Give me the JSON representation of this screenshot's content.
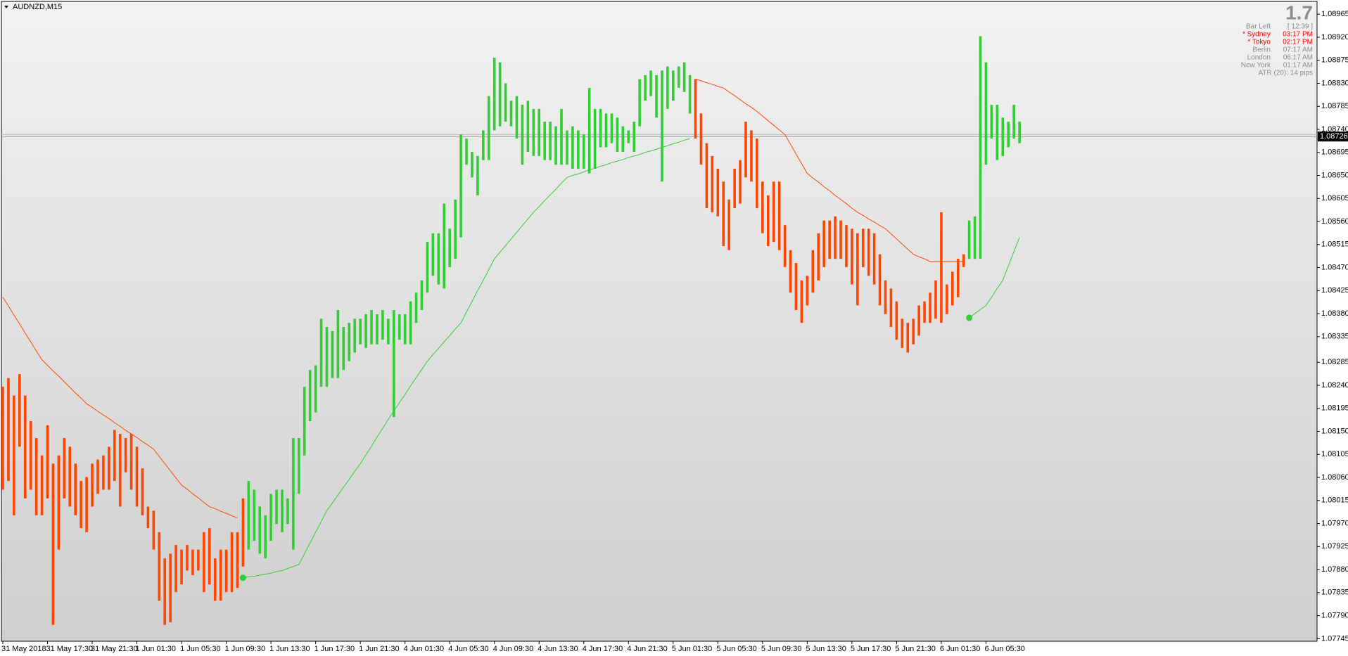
{
  "chart_data": {
    "type": "range_bar",
    "title": "AUDNZD,M15",
    "categories": [
      "31 May 2018",
      null,
      null,
      null,
      null,
      null,
      null,
      null,
      "31 May 17:30",
      null,
      null,
      null,
      null,
      null,
      null,
      null,
      "31 May 21:30",
      null,
      null,
      null,
      null,
      null,
      null,
      null,
      "1 Jun 01:30",
      null,
      null,
      null,
      null,
      null,
      null,
      null,
      "1 Jun 05:30",
      null,
      null,
      null,
      null,
      null,
      null,
      null,
      "1 Jun 09:30",
      null,
      null,
      null,
      null,
      null,
      null,
      null,
      "1 Jun 13:30",
      null,
      null,
      null,
      null,
      null,
      null,
      null,
      "1 Jun 17:30",
      null,
      null,
      null,
      null,
      null,
      null,
      null,
      "1 Jun 21:30",
      null,
      null,
      null,
      null,
      null,
      null,
      null,
      "4 Jun 01:30",
      null,
      null,
      null,
      null,
      null,
      null,
      null,
      "4 Jun 05:30",
      null,
      null,
      null,
      null,
      null,
      null,
      null,
      "4 Jun 09:30",
      null,
      null,
      null,
      null,
      null,
      null,
      null,
      "4 Jun 13:30",
      null,
      null,
      null,
      null,
      null,
      null,
      null,
      "4 Jun 17:30",
      null,
      null,
      null,
      null,
      null,
      null,
      null,
      "4 Jun 21:30",
      null,
      null,
      null,
      null,
      null,
      null,
      null,
      "5 Jun 01:30",
      null,
      null,
      null,
      null,
      null,
      null,
      null,
      "5 Jun 05:30",
      null,
      null,
      null,
      null,
      null,
      null,
      null,
      "5 Jun 09:30",
      null,
      null,
      null,
      null,
      null,
      null,
      null,
      "5 Jun 13:30",
      null,
      null,
      null,
      null,
      null,
      null,
      null,
      "5 Jun 17:30",
      null,
      null,
      null,
      null,
      null,
      null,
      null,
      "5 Jun 21:30",
      null,
      null,
      null,
      null,
      null,
      null,
      null,
      "6 Jun 01:30",
      null,
      null,
      null,
      null,
      null,
      null,
      null,
      "6 Jun 05:30",
      null,
      null,
      null,
      null,
      null,
      null
    ],
    "high": [
      1.08237,
      1.08254,
      1.0822,
      1.08262,
      1.0822,
      1.0817,
      1.08137,
      1.08103,
      1.08162,
      1.08087,
      1.08103,
      1.08137,
      1.0812,
      1.08087,
      1.08053,
      1.08061,
      1.08087,
      1.08095,
      1.08103,
      1.0812,
      1.08153,
      1.08145,
      1.08137,
      1.08145,
      1.0812,
      1.08078,
      1.08003,
      1.07995,
      1.07953,
      1.07902,
      1.07911,
      1.07928,
      1.07919,
      1.07928,
      1.07919,
      1.07919,
      1.07953,
      1.07961,
      1.07902,
      1.07919,
      1.07919,
      1.07953,
      1.07953,
      1.08019,
      1.08053,
      1.08036,
      1.08003,
      1.07986,
      1.08028,
      1.08036,
      1.08036,
      1.08019,
      1.08137,
      1.08137,
      1.08237,
      1.0827,
      1.08279,
      1.0837,
      1.08354,
      1.08346,
      1.08387,
      1.08354,
      1.08362,
      1.0837,
      1.0837,
      1.08379,
      1.08387,
      1.08379,
      1.08387,
      1.0837,
      1.08387,
      1.08379,
      1.08379,
      1.08404,
      1.08421,
      1.08445,
      1.0852,
      1.08537,
      1.08537,
      1.08595,
      1.08546,
      1.08603,
      1.0873,
      1.08722,
      1.08696,
      1.08688,
      1.08738,
      1.08805,
      1.0888,
      1.08871,
      1.0883,
      1.08796,
      1.08805,
      1.08788,
      1.08796,
      1.0878,
      1.0878,
      1.08755,
      1.08755,
      1.08746,
      1.0878,
      1.08738,
      1.08746,
      1.08738,
      1.0873,
      1.08821,
      1.0878,
      1.0878,
      1.08771,
      1.08771,
      1.08763,
      1.08746,
      1.08738,
      1.08755,
      1.08838,
      1.08846,
      1.08855,
      1.08846,
      1.08855,
      1.08863,
      1.08855,
      1.08863,
      1.08871,
      1.08846,
      1.08838,
      1.08771,
      1.08713,
      1.08688,
      1.08663,
      1.08638,
      1.08603,
      1.08663,
      1.0868,
      1.08755,
      1.08738,
      1.08722,
      1.08638,
      1.08611,
      1.08638,
      1.08638,
      1.08553,
      1.08504,
      1.08479,
      1.08445,
      1.08454,
      1.08504,
      1.08537,
      1.08562,
      1.08562,
      1.0857,
      1.08562,
      1.08553,
      1.08546,
      1.08537,
      1.08546,
      1.08546,
      1.08537,
      1.08496,
      1.08445,
      1.08429,
      1.08404,
      1.0837,
      1.08362,
      1.0837,
      1.08396,
      1.08404,
      1.08421,
      1.08445,
      1.08578,
      1.08437,
      1.08462,
      1.08487,
      1.08496,
      1.08562,
      1.0857,
      1.08922,
      1.08871,
      1.08788,
      1.08788,
      1.08763,
      1.08755,
      1.08788,
      1.08755
    ],
    "low": [
      1.08036,
      1.08053,
      1.07986,
      1.0812,
      1.08019,
      1.08036,
      1.07986,
      1.07986,
      1.08019,
      1.07772,
      1.07919,
      1.08019,
      1.08003,
      1.07986,
      1.07961,
      1.07953,
      1.08003,
      1.08028,
      1.08036,
      1.08036,
      1.08053,
      1.08003,
      1.0807,
      1.08036,
      1.08003,
      1.07986,
      1.07961,
      1.07919,
      1.07819,
      1.07772,
      1.07777,
      1.07836,
      1.07851,
      1.07878,
      1.07869,
      1.07878,
      1.07836,
      1.07851,
      1.07819,
      1.07819,
      1.07836,
      1.07836,
      1.07844,
      1.07886,
      1.07919,
      1.07936,
      1.07911,
      1.07902,
      1.07936,
      1.07969,
      1.07953,
      1.07969,
      1.07919,
      1.08028,
      1.08103,
      1.0817,
      1.08187,
      1.08237,
      1.08237,
      1.08254,
      1.08254,
      1.0827,
      1.08287,
      1.08304,
      1.0832,
      1.08313,
      1.0832,
      1.0832,
      1.08329,
      1.0832,
      1.08178,
      1.08329,
      1.0832,
      1.0832,
      1.08362,
      1.08387,
      1.08421,
      1.08454,
      1.08437,
      1.08429,
      1.08471,
      1.08487,
      1.08529,
      1.08671,
      1.08646,
      1.08611,
      1.0868,
      1.0868,
      1.08738,
      1.08746,
      1.08755,
      1.08746,
      1.08722,
      1.08671,
      1.08696,
      1.08688,
      1.08688,
      1.0868,
      1.0868,
      1.08671,
      1.08671,
      1.08671,
      1.08663,
      1.08663,
      1.08663,
      1.08654,
      1.08663,
      1.08705,
      1.08705,
      1.08713,
      1.08696,
      1.08696,
      1.08713,
      1.08696,
      1.08746,
      1.08796,
      1.08805,
      1.08763,
      1.08638,
      1.0878,
      1.08796,
      1.08821,
      1.08813,
      1.08771,
      1.08722,
      1.08671,
      1.08586,
      1.08578,
      1.0857,
      1.08512,
      1.08504,
      1.08586,
      1.08595,
      1.08646,
      1.08638,
      1.08586,
      1.08537,
      1.08512,
      1.0852,
      1.08504,
      1.08471,
      1.08421,
      1.08387,
      1.08362,
      1.08396,
      1.08421,
      1.08445,
      1.08471,
      1.08487,
      1.08487,
      1.08487,
      1.08471,
      1.08437,
      1.08396,
      1.08471,
      1.08454,
      1.08437,
      1.08396,
      1.08379,
      1.08354,
      1.08329,
      1.08313,
      1.08304,
      1.0832,
      1.08337,
      1.08362,
      1.08362,
      1.0837,
      1.08362,
      1.08379,
      1.08396,
      1.08412,
      1.08471,
      1.08487,
      1.08487,
      1.08487,
      1.08671,
      1.08722,
      1.0868,
      1.08688,
      1.08705,
      1.08722,
      1.08713
    ],
    "colors": [
      "#ff4500",
      "#ff4500",
      "#ff4500",
      "#ff4500",
      "#ff4500",
      "#ff4500",
      "#ff4500",
      "#ff4500",
      "#ff4500",
      "#ff4500",
      "#ff4500",
      "#ff4500",
      "#ff4500",
      "#ff4500",
      "#ff4500",
      "#ff4500",
      "#ff4500",
      "#ff4500",
      "#ff4500",
      "#ff4500",
      "#ff4500",
      "#ff4500",
      "#ff4500",
      "#ff4500",
      "#ff4500",
      "#ff4500",
      "#ff4500",
      "#ff4500",
      "#ff4500",
      "#ff4500",
      "#ff4500",
      "#ff4500",
      "#ff4500",
      "#ff4500",
      "#ff4500",
      "#ff4500",
      "#ff4500",
      "#ff4500",
      "#ff4500",
      "#ff4500",
      "#ff4500",
      "#ff4500",
      "#ff4500",
      "#ff4500",
      "#32cd32",
      "#32cd32",
      "#32cd32",
      "#32cd32",
      "#32cd32",
      "#32cd32",
      "#32cd32",
      "#32cd32",
      "#32cd32",
      "#32cd32",
      "#32cd32",
      "#32cd32",
      "#32cd32",
      "#32cd32",
      "#32cd32",
      "#32cd32",
      "#32cd32",
      "#32cd32",
      "#32cd32",
      "#32cd32",
      "#32cd32",
      "#32cd32",
      "#32cd32",
      "#32cd32",
      "#32cd32",
      "#32cd32",
      "#32cd32",
      "#32cd32",
      "#32cd32",
      "#32cd32",
      "#32cd32",
      "#32cd32",
      "#32cd32",
      "#32cd32",
      "#32cd32",
      "#32cd32",
      "#32cd32",
      "#32cd32",
      "#32cd32",
      "#32cd32",
      "#32cd32",
      "#32cd32",
      "#32cd32",
      "#32cd32",
      "#32cd32",
      "#32cd32",
      "#32cd32",
      "#32cd32",
      "#32cd32",
      "#32cd32",
      "#32cd32",
      "#32cd32",
      "#32cd32",
      "#32cd32",
      "#32cd32",
      "#32cd32",
      "#32cd32",
      "#32cd32",
      "#32cd32",
      "#32cd32",
      "#32cd32",
      "#32cd32",
      "#32cd32",
      "#32cd32",
      "#32cd32",
      "#32cd32",
      "#32cd32",
      "#32cd32",
      "#32cd32",
      "#32cd32",
      "#32cd32",
      "#32cd32",
      "#32cd32",
      "#32cd32",
      "#32cd32",
      "#32cd32",
      "#32cd32",
      "#32cd32",
      "#32cd32",
      "#32cd32",
      "#ff4500",
      "#ff4500",
      "#ff4500",
      "#ff4500",
      "#ff4500",
      "#ff4500",
      "#ff4500",
      "#ff4500",
      "#ff4500",
      "#ff4500",
      "#ff4500",
      "#ff4500",
      "#ff4500",
      "#ff4500",
      "#ff4500",
      "#ff4500",
      "#ff4500",
      "#ff4500",
      "#ff4500",
      "#ff4500",
      "#ff4500",
      "#ff4500",
      "#ff4500",
      "#ff4500",
      "#ff4500",
      "#ff4500",
      "#ff4500",
      "#ff4500",
      "#ff4500",
      "#ff4500",
      "#ff4500",
      "#ff4500",
      "#ff4500",
      "#ff4500",
      "#ff4500",
      "#ff4500",
      "#ff4500",
      "#ff4500",
      "#ff4500",
      "#ff4500",
      "#ff4500",
      "#ff4500",
      "#ff4500",
      "#ff4500",
      "#ff4500",
      "#ff4500",
      "#ff4500",
      "#ff4500",
      "#ff4500",
      "#32cd32",
      "#32cd32",
      "#32cd32",
      "#32cd32",
      "#32cd32",
      "#32cd32",
      "#32cd32",
      "#32cd32",
      "#32cd32",
      "#32cd32"
    ],
    "series": [
      {
        "color": "#ff4500",
        "values": [
          1.08412,
          1.08395,
          1.08377,
          1.0836,
          1.08342,
          1.08325,
          1.08307,
          1.0829,
          1.08279,
          1.08268,
          1.08258,
          1.08247,
          1.08236,
          1.08225,
          1.08215,
          1.08204,
          1.08197,
          1.08189,
          1.08182,
          1.08175,
          1.08167,
          1.0816,
          1.08152,
          1.08145,
          1.08138,
          1.0813,
          1.08123,
          1.08115,
          1.08101,
          1.08087,
          1.08073,
          1.08059,
          1.08045,
          1.08037,
          1.08028,
          1.0802,
          1.08011,
          1.08003,
          1.07999,
          1.07994,
          1.0799,
          1.07985,
          1.07981,
          null,
          null,
          null,
          null,
          null,
          null,
          null,
          null,
          null,
          null,
          null,
          null,
          null,
          null,
          null,
          null,
          null,
          null,
          null,
          null,
          null,
          null,
          null,
          null,
          null,
          null,
          null,
          null,
          null,
          null,
          null,
          null,
          null,
          null,
          null,
          null,
          null,
          null,
          null,
          null,
          null,
          null,
          null,
          null,
          null,
          null,
          null,
          null,
          null,
          null,
          null,
          null,
          null,
          null,
          null,
          null,
          null,
          null,
          null,
          null,
          null,
          null,
          null,
          null,
          null,
          null,
          null,
          null,
          null,
          null,
          null,
          null,
          null,
          null,
          null,
          null,
          null,
          null,
          null,
          null,
          null,
          1.08838,
          1.08835,
          1.08831,
          1.08828,
          1.08824,
          1.08821,
          1.08813,
          1.08806,
          1.08798,
          1.0879,
          1.08783,
          1.08775,
          1.08766,
          1.08757,
          1.08748,
          1.08739,
          1.0873,
          1.08711,
          1.08692,
          1.08673,
          1.08654,
          1.08645,
          1.08637,
          1.08628,
          1.0862,
          1.08611,
          1.08603,
          1.08595,
          1.08586,
          1.08578,
          1.08572,
          1.08565,
          1.08559,
          1.08552,
          1.08546,
          1.08536,
          1.08526,
          1.08516,
          1.08506,
          1.08496,
          1.08491,
          1.08487,
          1.08482,
          1.08482,
          1.08482,
          1.08482,
          1.08482,
          1.08482,
          1.08482,
          null,
          null,
          null,
          null,
          null,
          null,
          null,
          null,
          null,
          null
        ]
      },
      {
        "color": "#32cd32",
        "start_dot": true,
        "values": [
          null,
          null,
          null,
          null,
          null,
          null,
          null,
          null,
          null,
          null,
          null,
          null,
          null,
          null,
          null,
          null,
          null,
          null,
          null,
          null,
          null,
          null,
          null,
          null,
          null,
          null,
          null,
          null,
          null,
          null,
          null,
          null,
          null,
          null,
          null,
          null,
          null,
          null,
          null,
          null,
          null,
          null,
          null,
          1.07864,
          1.07866,
          1.07867,
          1.07869,
          1.07871,
          1.07873,
          1.07876,
          1.07878,
          1.07882,
          1.07886,
          1.0789,
          1.07911,
          1.07932,
          1.07953,
          1.07974,
          1.07995,
          1.0801,
          1.08026,
          1.08041,
          1.08056,
          1.08072,
          1.08087,
          1.08104,
          1.08121,
          1.08139,
          1.08156,
          1.08173,
          1.0819,
          1.08206,
          1.08222,
          1.08239,
          1.08255,
          1.08271,
          1.08287,
          1.083,
          1.08312,
          1.08325,
          1.08337,
          1.0835,
          1.08362,
          1.08383,
          1.08404,
          1.08425,
          1.08445,
          1.08466,
          1.08487,
          1.085,
          1.08513,
          1.08526,
          1.08539,
          1.08552,
          1.08565,
          1.08578,
          1.08589,
          1.08601,
          1.08612,
          1.08623,
          1.08635,
          1.08646,
          1.0865,
          1.08653,
          1.08657,
          1.08661,
          1.08664,
          1.08668,
          1.08671,
          1.08675,
          1.08678,
          1.08681,
          1.08685,
          1.08688,
          1.08691,
          1.08695,
          1.08698,
          1.08701,
          1.08705,
          1.08708,
          1.08712,
          1.08715,
          1.08719,
          1.08722,
          null,
          null,
          null,
          null,
          null,
          null,
          null,
          null,
          null,
          null,
          null,
          null,
          null,
          null,
          null,
          null,
          null,
          null,
          null,
          null,
          null,
          null,
          null,
          null,
          null,
          null,
          null,
          null,
          null,
          null,
          null,
          null,
          null,
          null,
          null,
          null,
          null,
          null,
          null,
          null,
          null,
          null,
          null,
          null,
          null,
          null,
          null,
          null,
          null,
          1.08372,
          1.0838,
          1.08388,
          1.08396,
          1.08412,
          1.08429,
          1.08445,
          1.08473,
          1.08501,
          1.08529
        ]
      }
    ],
    "ylim": [
      1.0774,
      1.0899
    ],
    "yticks": [
      1.08965,
      {
        "value": 1.0892,
        "label": "1.08920"
      },
      1.08875,
      {
        "value": 1.0883,
        "label": "1.08830"
      },
      1.08785,
      {
        "value": 1.0874,
        "label": "1.08740"
      },
      1.08695,
      {
        "value": 1.0865,
        "label": "1.08650"
      },
      1.08605,
      {
        "value": 1.0856,
        "label": "1.08560"
      },
      1.08515,
      {
        "value": 1.0847,
        "label": "1.08470"
      },
      1.08425,
      {
        "value": 1.0838,
        "label": "1.08380"
      },
      1.08335,
      1.08285,
      {
        "value": 1.0824,
        "label": "1.08240"
      },
      1.08195,
      {
        "value": 1.0815,
        "label": "1.08150"
      },
      1.08105,
      {
        "value": 1.0806,
        "label": "1.08060"
      },
      1.08015,
      {
        "value": 1.0797,
        "label": "1.07970"
      },
      1.07925,
      {
        "value": 1.0788,
        "label": "1.07880"
      },
      1.07835,
      {
        "value": 1.0779,
        "label": "1.07790"
      },
      1.07745
    ],
    "current_price": 1.08726
  },
  "info_panel": {
    "value": "1.7",
    "rows": [
      {
        "label": "Bar Left",
        "value": "[ 12:39 ]",
        "color": "#8c8c8c"
      },
      {
        "label": "* Sydney",
        "value": "03:17 PM",
        "color": "#ff0000"
      },
      {
        "label": "* Tokyo",
        "value": "02:17 PM",
        "color": "#ff0000"
      },
      {
        "label": "Berlin",
        "value": "07:17 AM",
        "color": "#8c8c8c"
      },
      {
        "label": "London",
        "value": "06:17 AM",
        "color": "#8c8c8c"
      },
      {
        "label": "New York",
        "value": "01:17 AM",
        "color": "#8c8c8c"
      }
    ],
    "atr": "ATR (20): 14 pips"
  }
}
